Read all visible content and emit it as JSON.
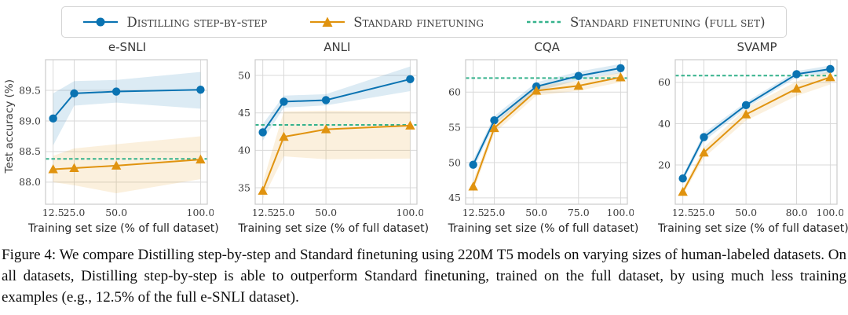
{
  "colors": {
    "distilling": "#0a73b2",
    "standard": "#e0930f",
    "fullset": "#35b28c",
    "grid": "#d9d9d9",
    "border": "#cccccc",
    "tick_text": "#3a3a3a"
  },
  "legend": {
    "items": [
      {
        "label": "Distilling step-by-step",
        "marker": "line-circle",
        "color_key": "distilling"
      },
      {
        "label": "Standard finetuning",
        "marker": "line-triangle",
        "color_key": "standard"
      },
      {
        "label": "Standard finetuning (full set)",
        "marker": "dashed-line",
        "color_key": "fullset"
      }
    ]
  },
  "charts_shared": {
    "xlabel": "Training set size (% of full dataset)",
    "ylabel": "Test accuracy (%)"
  },
  "chart_data": [
    {
      "type": "line",
      "title": "e-SNLI",
      "x": [
        12.5,
        25,
        50,
        100
      ],
      "xtick_labels": [
        "12.5",
        "25.0",
        "50.0",
        "100.0"
      ],
      "xlim": [
        8,
        104
      ],
      "ylim": [
        87.64,
        90.0
      ],
      "ytick_values": [
        88.0,
        88.5,
        89.0,
        89.5
      ],
      "ytick_labels": [
        "88.0",
        "88.5",
        "89.0",
        "89.5"
      ],
      "hline": 88.38,
      "series": [
        {
          "name": "Distilling step-by-step",
          "color_key": "distilling",
          "marker": "circle",
          "values": [
            89.04,
            89.45,
            89.48,
            89.51
          ],
          "band_lower": [
            88.6,
            89.25,
            89.3,
            89.2
          ],
          "band_upper": [
            89.45,
            89.65,
            89.67,
            89.8
          ]
        },
        {
          "name": "Standard finetuning",
          "color_key": "standard",
          "marker": "triangle",
          "values": [
            88.21,
            88.23,
            88.27,
            88.37
          ],
          "band_lower": [
            88.0,
            87.95,
            87.82,
            88.05
          ],
          "band_upper": [
            88.43,
            88.55,
            88.62,
            88.75
          ]
        }
      ]
    },
    {
      "type": "line",
      "title": "ANLI",
      "x": [
        12.5,
        25,
        50,
        100
      ],
      "xtick_labels": [
        "12.5",
        "25.0",
        "50.0",
        "100.0"
      ],
      "xlim": [
        8,
        104
      ],
      "ylim": [
        32.8,
        52.1
      ],
      "ytick_values": [
        35,
        40,
        45,
        50
      ],
      "ytick_labels": [
        "35",
        "40",
        "45",
        "50"
      ],
      "hline": 43.4,
      "series": [
        {
          "name": "Distilling step-by-step",
          "color_key": "distilling",
          "marker": "circle",
          "values": [
            42.4,
            46.5,
            46.7,
            49.5
          ],
          "band_lower": [
            41.3,
            45.7,
            46.0,
            47.9
          ],
          "band_upper": [
            43.5,
            47.3,
            47.5,
            51.2
          ]
        },
        {
          "name": "Standard finetuning",
          "color_key": "standard",
          "marker": "triangle",
          "values": [
            34.6,
            41.8,
            42.8,
            43.3
          ],
          "band_lower": [
            33.5,
            39.2,
            38.8,
            38.9
          ],
          "band_upper": [
            35.7,
            45.2,
            45.3,
            45.2
          ]
        }
      ]
    },
    {
      "type": "line",
      "title": "CQA",
      "x": [
        12.5,
        25,
        50,
        75,
        100
      ],
      "xtick_labels": [
        "12.5",
        "25.0",
        "50.0",
        "75.0",
        "100.0"
      ],
      "xlim": [
        8,
        104
      ],
      "ylim": [
        44.1,
        64.6
      ],
      "ytick_values": [
        45,
        50,
        55,
        60
      ],
      "ytick_labels": [
        "45",
        "50",
        "55",
        "60"
      ],
      "hline": 62.0,
      "series": [
        {
          "name": "Distilling step-by-step",
          "color_key": "distilling",
          "marker": "circle",
          "values": [
            49.7,
            56.0,
            60.8,
            62.3,
            63.4
          ],
          "band_lower": [
            49.0,
            55.4,
            60.1,
            61.7,
            62.7
          ],
          "band_upper": [
            50.4,
            56.6,
            61.4,
            62.9,
            64.0
          ]
        },
        {
          "name": "Standard finetuning",
          "color_key": "standard",
          "marker": "triangle",
          "values": [
            46.6,
            54.9,
            60.2,
            60.9,
            62.1
          ],
          "band_lower": [
            45.8,
            54.2,
            59.5,
            60.2,
            61.4
          ],
          "band_upper": [
            47.4,
            55.6,
            60.9,
            61.6,
            62.8
          ]
        }
      ]
    },
    {
      "type": "line",
      "title": "SVAMP",
      "x": [
        12.5,
        25,
        50,
        80,
        100
      ],
      "xtick_labels": [
        "12.5",
        "25.0",
        "50.0",
        "80.0",
        "100.0"
      ],
      "xlim": [
        8,
        104
      ],
      "ylim": [
        1,
        71
      ],
      "ytick_values": [
        20,
        40,
        60
      ],
      "ytick_labels": [
        "20",
        "40",
        "60"
      ],
      "hline": 63.3,
      "series": [
        {
          "name": "Distilling step-by-step",
          "color_key": "distilling",
          "marker": "circle",
          "values": [
            13.5,
            33.5,
            49.0,
            64.0,
            66.5
          ],
          "band_lower": [
            12.0,
            31.5,
            47.5,
            62.5,
            64.5
          ],
          "band_upper": [
            15.0,
            35.5,
            50.5,
            65.5,
            68.2
          ]
        },
        {
          "name": "Standard finetuning",
          "color_key": "standard",
          "marker": "triangle",
          "values": [
            7.0,
            26.0,
            44.5,
            57.0,
            62.5
          ],
          "band_lower": [
            5.5,
            23.5,
            41.5,
            53.5,
            59.0
          ],
          "band_upper": [
            8.5,
            28.5,
            47.5,
            60.5,
            65.5
          ]
        }
      ]
    }
  ],
  "caption": {
    "text": "Figure 4: We compare Distilling step-by-step and Standard finetuning using 220M T5 models on varying sizes of human-labeled datasets. On all datasets, Distilling step-by-step is able to outperform Standard finetuning, trained on the full dataset, by using much less training examples (e.g., 12.5% of the full e-SNLI dataset)."
  }
}
